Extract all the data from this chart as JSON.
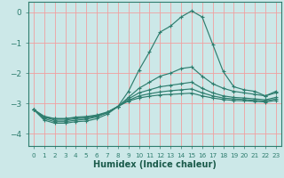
{
  "xlabel": "Humidex (Indice chaleur)",
  "bg_color": "#cce8e8",
  "grid_color": "#f0a0a0",
  "line_color": "#2e7d6e",
  "x_values": [
    0,
    1,
    2,
    3,
    4,
    5,
    6,
    7,
    8,
    9,
    10,
    11,
    12,
    13,
    14,
    15,
    16,
    17,
    18,
    19,
    20,
    21,
    22,
    23
  ],
  "series": [
    [
      -3.2,
      -3.55,
      -3.65,
      -3.65,
      -3.6,
      -3.58,
      -3.5,
      -3.35,
      -3.1,
      -2.6,
      -1.9,
      -1.3,
      -0.65,
      -0.45,
      -0.15,
      0.05,
      -0.15,
      -1.05,
      -1.95,
      -2.45,
      -2.55,
      -2.6,
      -2.75,
      -2.6
    ],
    [
      -3.2,
      -3.5,
      -3.6,
      -3.6,
      -3.55,
      -3.52,
      -3.44,
      -3.3,
      -3.1,
      -2.8,
      -2.5,
      -2.3,
      -2.1,
      -2.0,
      -1.85,
      -1.8,
      -2.1,
      -2.35,
      -2.5,
      -2.6,
      -2.65,
      -2.7,
      -2.75,
      -2.65
    ],
    [
      -3.2,
      -3.45,
      -3.55,
      -3.55,
      -3.5,
      -3.48,
      -3.42,
      -3.3,
      -3.1,
      -2.85,
      -2.65,
      -2.55,
      -2.45,
      -2.4,
      -2.35,
      -2.3,
      -2.5,
      -2.65,
      -2.75,
      -2.8,
      -2.82,
      -2.85,
      -2.88,
      -2.8
    ],
    [
      -3.2,
      -3.45,
      -3.5,
      -3.5,
      -3.47,
      -3.45,
      -3.4,
      -3.3,
      -3.1,
      -2.9,
      -2.75,
      -2.68,
      -2.62,
      -2.58,
      -2.55,
      -2.52,
      -2.65,
      -2.75,
      -2.82,
      -2.85,
      -2.87,
      -2.9,
      -2.92,
      -2.85
    ],
    [
      -3.2,
      -3.42,
      -3.5,
      -3.5,
      -3.45,
      -3.43,
      -3.38,
      -3.28,
      -3.1,
      -2.92,
      -2.82,
      -2.76,
      -2.72,
      -2.7,
      -2.68,
      -2.66,
      -2.75,
      -2.82,
      -2.87,
      -2.9,
      -2.91,
      -2.93,
      -2.95,
      -2.9
    ]
  ],
  "ylim": [
    -4.4,
    0.35
  ],
  "yticks": [
    0,
    -1,
    -2,
    -3,
    -4
  ],
  "xlim": [
    -0.5,
    23.5
  ],
  "xtick_fontsize": 5.2,
  "ytick_fontsize": 6.5,
  "xlabel_fontsize": 7.0
}
